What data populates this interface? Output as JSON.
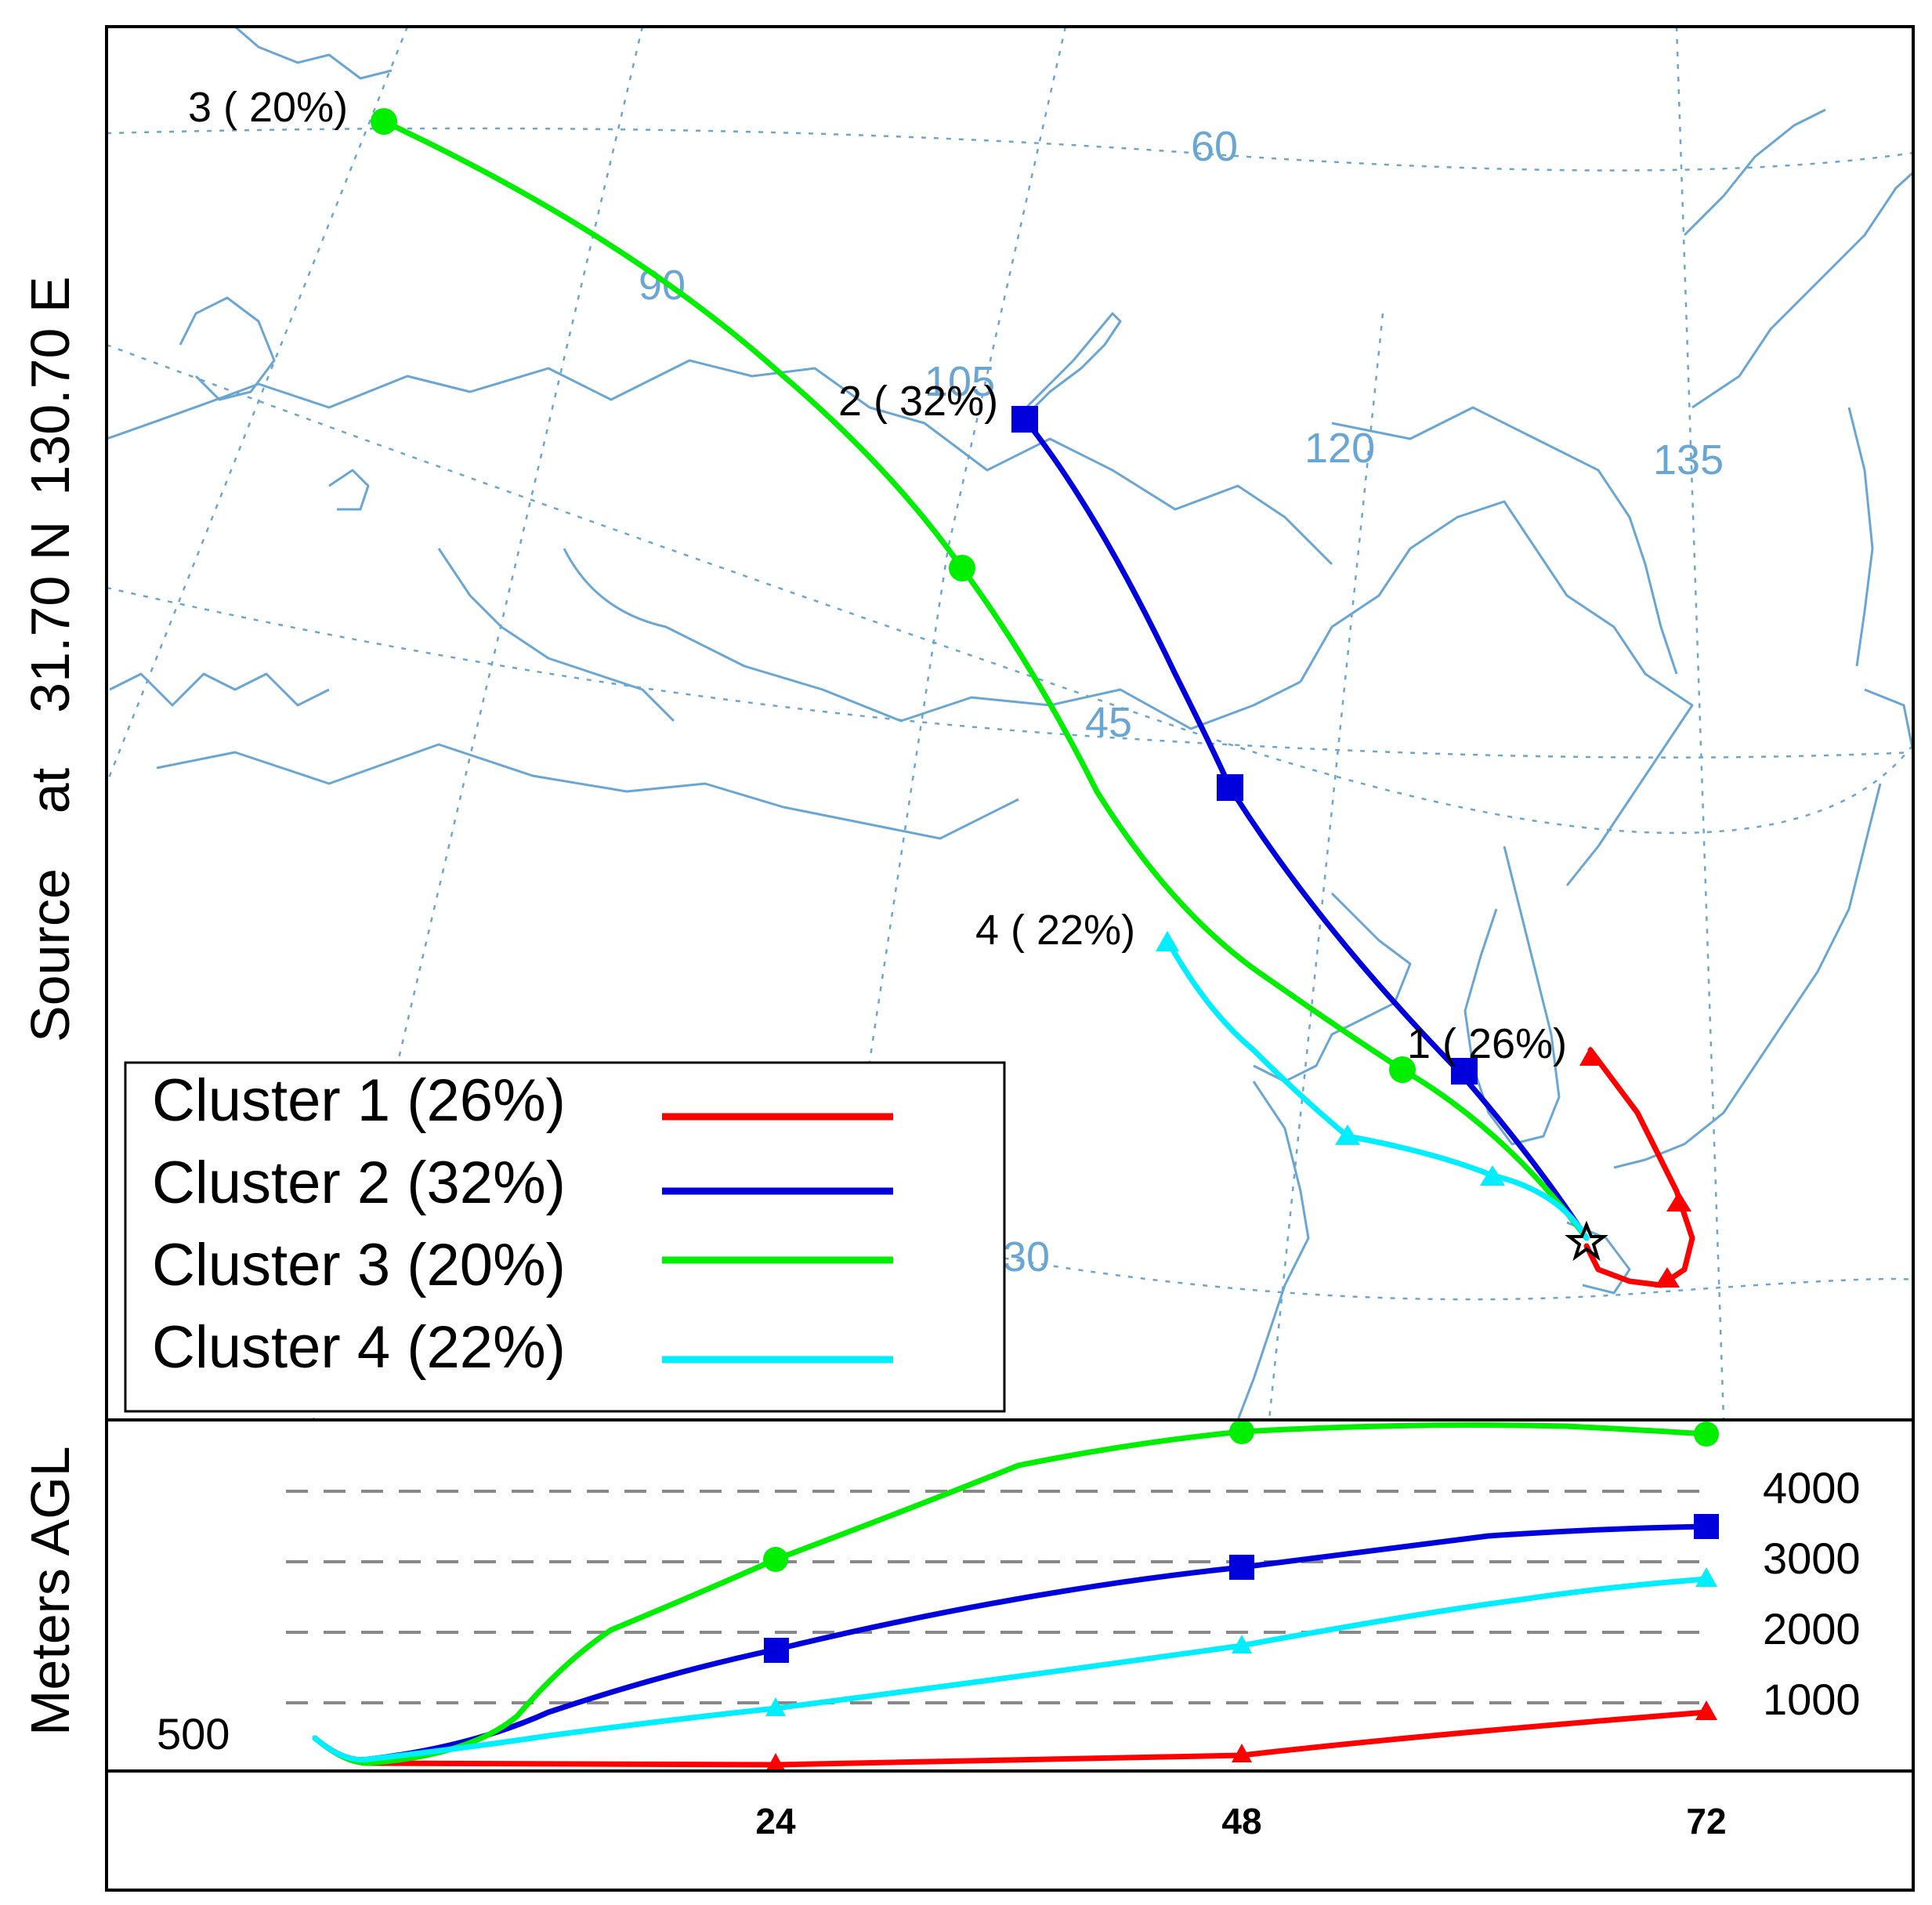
{
  "source_label": {
    "word": "Source",
    "at": "at",
    "lat": "31.70 N",
    "lon": "130.70 E"
  },
  "grid_labels": {
    "lon_90": "90",
    "lon_105": "105",
    "lon_120": "120",
    "lon_135": "135",
    "lat_60": "60",
    "lat_45": "45",
    "lat_30": "30"
  },
  "cluster_labels": [
    "1 ( 26%)",
    "2 ( 32%)",
    "3 ( 20%)",
    "4 ( 22%)"
  ],
  "legend": [
    {
      "label": "Cluster 1 (26%)",
      "color": "#ff0000"
    },
    {
      "label": "Cluster 2 (32%)",
      "color": "#0000dd"
    },
    {
      "label": "Cluster 3 (20%)",
      "color": "#00ee00"
    },
    {
      "label": "Cluster 4 (22%)",
      "color": "#00eeff"
    }
  ],
  "colors": {
    "map_lines": "#6aa6d4",
    "frame": "#000000",
    "gridline_dashed": "#888888"
  },
  "icons": {
    "source_marker": "star-icon",
    "cluster1_marker": "triangle",
    "cluster2_marker": "square",
    "cluster3_marker": "circle",
    "cluster4_marker": "triangle"
  },
  "profile": {
    "ylabel": "Meters AGL",
    "y_tick_labels": [
      "4000",
      "3000",
      "2000",
      "1000"
    ],
    "start_label": "500",
    "x_tick_labels": [
      "24",
      "48",
      "72"
    ]
  }
}
